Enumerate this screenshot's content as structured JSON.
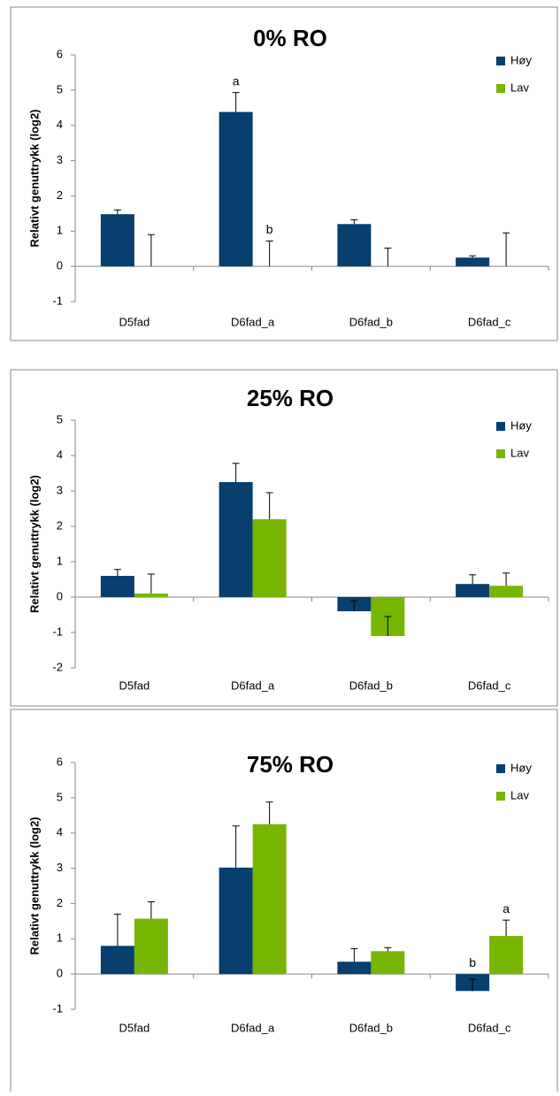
{
  "chart_data": [
    {
      "type": "bar",
      "title": "0% RO",
      "y_label": "Relativt genuttrykk (log2)",
      "categories": [
        "D5fad",
        "D6fad_a",
        "D6fad_b",
        "D6fad_c"
      ],
      "ylim": [
        -1,
        6
      ],
      "yticks": [
        -1,
        0,
        1,
        2,
        3,
        4,
        5,
        6
      ],
      "legend": "top-right",
      "series": [
        {
          "name": "Høy",
          "color": "#073f6e",
          "values": [
            1.48,
            4.38,
            1.2,
            0.25
          ],
          "errors": [
            0.12,
            0.55,
            0.12,
            0.05
          ],
          "annotations": [
            null,
            "a",
            null,
            null
          ]
        },
        {
          "name": "Lav",
          "color": "#76b600",
          "values": [
            0,
            0,
            0,
            0
          ],
          "errors": [
            0.9,
            0.72,
            0.52,
            0.95
          ],
          "annotations": [
            null,
            "b",
            null,
            null
          ]
        }
      ]
    },
    {
      "type": "bar",
      "title": "25% RO",
      "y_label": "Relativt genuttrykk (log2)",
      "categories": [
        "D5fad",
        "D6fad_a",
        "D6fad_b",
        "D6fad_c"
      ],
      "ylim": [
        -2,
        5
      ],
      "yticks": [
        -2,
        -1,
        0,
        1,
        2,
        3,
        4,
        5
      ],
      "legend": "top-right",
      "series": [
        {
          "name": "Høy",
          "color": "#073f6e",
          "values": [
            0.6,
            3.25,
            -0.4,
            0.37
          ],
          "errors": [
            0.18,
            0.53,
            0.3,
            0.26
          ]
        },
        {
          "name": "Lav",
          "color": "#76b600",
          "values": [
            0.1,
            2.2,
            -1.1,
            0.32
          ],
          "errors": [
            0.55,
            0.75,
            0.55,
            0.36
          ]
        }
      ]
    },
    {
      "type": "bar",
      "title": "75% RO",
      "y_label": "Relativt genuttrykk (log2)",
      "categories": [
        "D5fad",
        "D6fad_a",
        "D6fad_b",
        "D6fad_c"
      ],
      "ylim": [
        -1,
        6
      ],
      "yticks": [
        -1,
        0,
        1,
        2,
        3,
        4,
        5,
        6
      ],
      "legend": "top-right",
      "series": [
        {
          "name": "Høy",
          "color": "#073f6e",
          "values": [
            0.8,
            3.02,
            0.35,
            -0.48
          ],
          "errors": [
            0.9,
            1.18,
            0.37,
            0.33
          ],
          "annotations": [
            null,
            null,
            null,
            "b"
          ]
        },
        {
          "name": "Lav",
          "color": "#76b600",
          "values": [
            1.57,
            4.25,
            0.65,
            1.08
          ],
          "errors": [
            0.48,
            0.63,
            0.1,
            0.45
          ],
          "annotations": [
            null,
            null,
            null,
            "a"
          ]
        }
      ]
    }
  ]
}
